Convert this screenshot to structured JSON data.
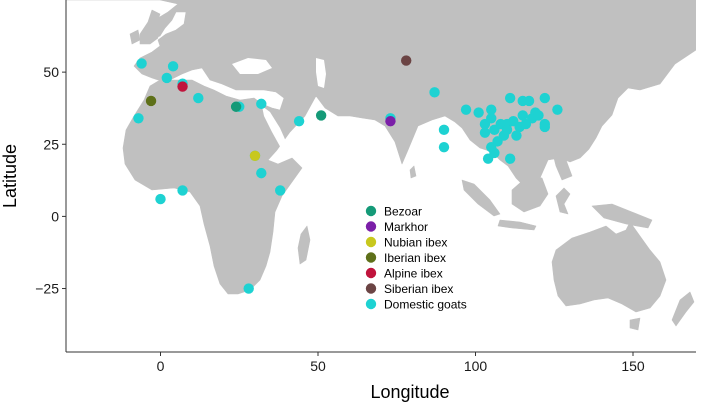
{
  "chart_data": {
    "type": "scatter",
    "title": "",
    "xlabel": "Longitude",
    "ylabel": "Latitude",
    "xlim": [
      -30,
      170
    ],
    "ylim": [
      -47,
      75
    ],
    "x_ticks": [
      0,
      50,
      100,
      150
    ],
    "y_ticks": [
      -25,
      0,
      25,
      50
    ],
    "x_tick_labels": [
      "0",
      "50",
      "100",
      "150"
    ],
    "y_tick_labels": [
      "−25",
      "0",
      "25",
      "50"
    ],
    "grid": false,
    "legend_position": "center",
    "background_map": "world land (grey)",
    "series": [
      {
        "name": "Bezoar",
        "color": "#159a78",
        "points": [
          [
            24,
            38
          ],
          [
            51,
            35
          ]
        ]
      },
      {
        "name": "Markhor",
        "color": "#7b1fa8",
        "points": [
          [
            73,
            33
          ]
        ]
      },
      {
        "name": "Nubian ibex",
        "color": "#c8c81e",
        "points": [
          [
            30,
            21
          ]
        ]
      },
      {
        "name": "Iberian ibex",
        "color": "#5e7019",
        "points": [
          [
            -3,
            40
          ]
        ]
      },
      {
        "name": "Alpine ibex",
        "color": "#c0143c",
        "points": [
          [
            7,
            45
          ]
        ]
      },
      {
        "name": "Siberian ibex",
        "color": "#6b4444",
        "points": [
          [
            78,
            54
          ]
        ]
      },
      {
        "name": "Domestic goats",
        "color": "#1ed2d2",
        "points": [
          [
            -6,
            53
          ],
          [
            4,
            52
          ],
          [
            2,
            48
          ],
          [
            7,
            46
          ],
          [
            12,
            41
          ],
          [
            -7,
            34
          ],
          [
            25,
            38
          ],
          [
            32,
            39
          ],
          [
            44,
            33
          ],
          [
            73,
            34
          ],
          [
            87,
            43
          ],
          [
            30,
            21
          ],
          [
            32,
            15
          ],
          [
            38,
            9
          ],
          [
            7,
            9
          ],
          [
            0,
            6
          ],
          [
            28,
            -25
          ],
          [
            90,
            30
          ],
          [
            90,
            24
          ],
          [
            97,
            37
          ],
          [
            101,
            36
          ],
          [
            105,
            37
          ],
          [
            111,
            41
          ],
          [
            115,
            40
          ],
          [
            117,
            40
          ],
          [
            122,
            41
          ],
          [
            126,
            37
          ],
          [
            103,
            32
          ],
          [
            106,
            30
          ],
          [
            105,
            34
          ],
          [
            108,
            32
          ],
          [
            110,
            32
          ],
          [
            112,
            33
          ],
          [
            114,
            31
          ],
          [
            116,
            32
          ],
          [
            118,
            34
          ],
          [
            119,
            36
          ],
          [
            120,
            35
          ],
          [
            122,
            32
          ],
          [
            122,
            31
          ],
          [
            113,
            28
          ],
          [
            109,
            28
          ],
          [
            107,
            26
          ],
          [
            105,
            24
          ],
          [
            106,
            22
          ],
          [
            104,
            20
          ],
          [
            111,
            20
          ],
          [
            110,
            30
          ],
          [
            115,
            35
          ],
          [
            103,
            29
          ]
        ]
      }
    ]
  }
}
